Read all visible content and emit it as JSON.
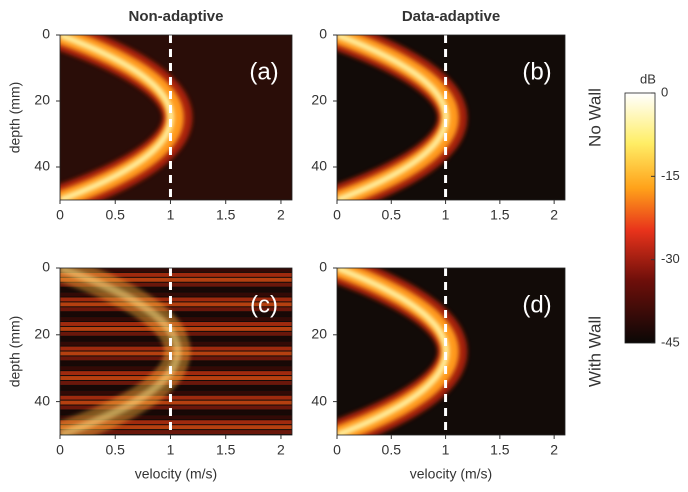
{
  "chart_data": [
    {
      "type": "heatmap",
      "title": "Non-adaptive",
      "panel_label": "(a)",
      "ylabel": "depth (mm)",
      "xlim": [
        0,
        2.1
      ],
      "ylim": [
        0,
        50
      ],
      "y_reversed": true,
      "xticks": [
        0,
        0.5,
        1,
        1.5,
        2
      ],
      "yticks": [
        0,
        20,
        40
      ],
      "ref_x": 1
    },
    {
      "type": "heatmap",
      "title": "Data-adaptive",
      "panel_label": "(b)",
      "side_label": "No Wall",
      "xlim": [
        0,
        2.1
      ],
      "ylim": [
        0,
        50
      ],
      "y_reversed": true,
      "xticks": [
        0,
        0.5,
        1,
        1.5,
        2
      ],
      "yticks": [
        0,
        20,
        40
      ],
      "ref_x": 1
    },
    {
      "type": "heatmap",
      "panel_label": "(c)",
      "ylabel": "depth (mm)",
      "xlabel": "velocity (m/s)",
      "xlim": [
        0,
        2.1
      ],
      "ylim": [
        0,
        50
      ],
      "y_reversed": true,
      "xticks": [
        0,
        0.5,
        1,
        1.5,
        2
      ],
      "yticks": [
        0,
        20,
        40
      ],
      "ref_x": 1
    },
    {
      "type": "heatmap",
      "panel_label": "(d)",
      "side_label": "With Wall",
      "xlabel": "velocity (m/s)",
      "xlim": [
        0,
        2.1
      ],
      "ylim": [
        0,
        50
      ],
      "y_reversed": true,
      "xticks": [
        0,
        0.5,
        1,
        1.5,
        2
      ],
      "yticks": [
        0,
        20,
        40
      ],
      "ref_x": 1
    }
  ],
  "colorbar": {
    "label": "dB",
    "lim": [
      -45,
      0
    ],
    "ticks": [
      0,
      -15,
      -30,
      -45
    ]
  }
}
